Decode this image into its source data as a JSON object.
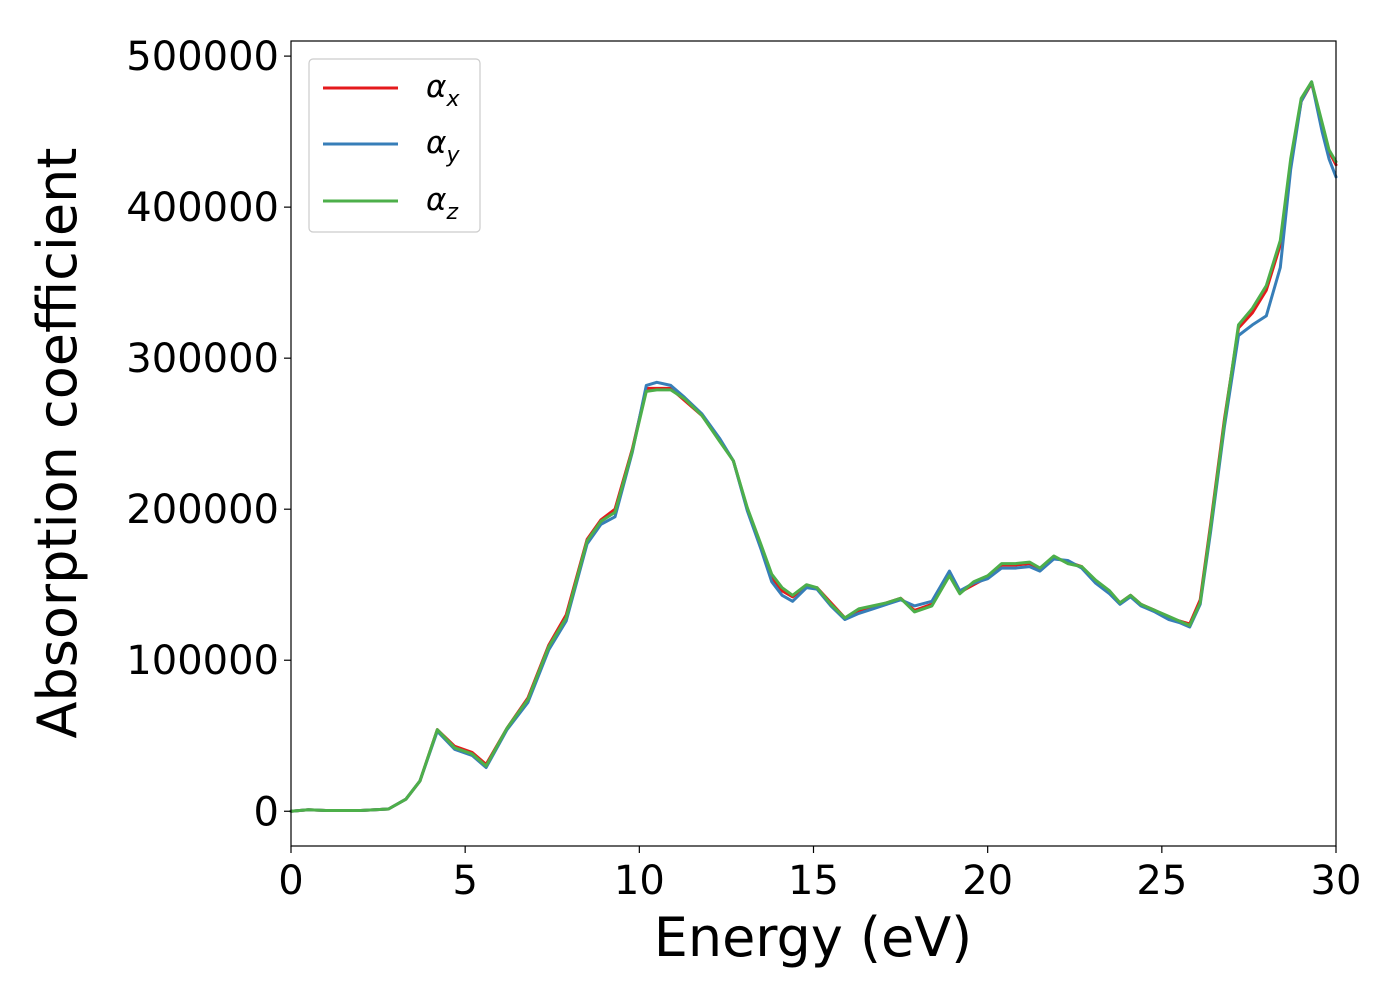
{
  "chart_data": {
    "type": "line",
    "title": "",
    "xlabel": "Energy (eV)",
    "ylabel": "Absorption coefficient",
    "xlim": [
      0,
      30
    ],
    "ylim": [
      -23000,
      510000
    ],
    "xticks": [
      "0",
      "5",
      "10",
      "15",
      "20",
      "25",
      "30"
    ],
    "xtick_values": [
      0,
      5,
      10,
      15,
      20,
      25,
      30
    ],
    "yticks": [
      "0",
      "100000",
      "200000",
      "300000",
      "400000",
      "500000"
    ],
    "ytick_values": [
      0,
      100000,
      200000,
      300000,
      400000,
      500000
    ],
    "grid": false,
    "legend_position": "top-left",
    "series": [
      {
        "name": "α_x",
        "label_base": "α",
        "label_sub": "x",
        "color": "#e41a1c",
        "x": [
          0,
          0.5,
          1,
          2,
          2.8,
          3.3,
          3.7,
          4.2,
          4.7,
          5.2,
          5.6,
          6.2,
          6.8,
          7.4,
          7.9,
          8.5,
          8.9,
          9.3,
          9.8,
          10.2,
          10.5,
          10.9,
          11.3,
          11.8,
          12.3,
          12.7,
          13.1,
          13.5,
          13.8,
          14.1,
          14.4,
          14.8,
          15.1,
          15.5,
          15.9,
          16.3,
          16.7,
          17.1,
          17.5,
          17.9,
          18.4,
          18.9,
          19.2,
          19.6,
          20,
          20.4,
          20.8,
          21.2,
          21.5,
          21.9,
          22.3,
          22.7,
          23.1,
          23.5,
          23.8,
          24.1,
          24.4,
          24.8,
          25.2,
          25.5,
          25.8,
          26.1,
          26.4,
          26.8,
          27.2,
          27.6,
          28,
          28.4,
          28.7,
          29,
          29.3,
          29.6,
          29.8,
          30
        ],
        "values": [
          0,
          1000,
          500,
          500,
          1500,
          8000,
          20000,
          54000,
          43000,
          39000,
          31000,
          55000,
          75000,
          110000,
          130000,
          180000,
          193000,
          200000,
          240000,
          280000,
          280000,
          280000,
          272000,
          262000,
          246000,
          232000,
          200000,
          175000,
          155000,
          146000,
          142000,
          149000,
          148000,
          138000,
          128000,
          133000,
          135000,
          138000,
          141000,
          133000,
          137000,
          158000,
          145000,
          150000,
          155000,
          163000,
          163000,
          164000,
          160000,
          168000,
          165000,
          162000,
          152000,
          145000,
          138000,
          143000,
          137000,
          133000,
          128000,
          126000,
          124000,
          140000,
          190000,
          260000,
          320000,
          330000,
          345000,
          375000,
          430000,
          470000,
          482000,
          455000,
          437000,
          428000
        ]
      },
      {
        "name": "α_y",
        "label_base": "α",
        "label_sub": "y",
        "color": "#377eb8",
        "x": [
          0,
          0.5,
          1,
          2,
          2.8,
          3.3,
          3.7,
          4.2,
          4.7,
          5.2,
          5.6,
          6.2,
          6.8,
          7.4,
          7.9,
          8.5,
          8.9,
          9.3,
          9.8,
          10.2,
          10.5,
          10.9,
          11.3,
          11.8,
          12.3,
          12.7,
          13.1,
          13.5,
          13.8,
          14.1,
          14.4,
          14.8,
          15.1,
          15.5,
          15.9,
          16.3,
          16.7,
          17.1,
          17.5,
          17.9,
          18.4,
          18.9,
          19.2,
          19.6,
          20,
          20.4,
          20.8,
          21.2,
          21.5,
          21.9,
          22.3,
          22.7,
          23.1,
          23.5,
          23.8,
          24.1,
          24.4,
          24.8,
          25.2,
          25.5,
          25.8,
          26.1,
          26.4,
          26.8,
          27.2,
          27.6,
          28,
          28.4,
          28.7,
          29,
          29.3,
          29.6,
          29.8,
          30
        ],
        "values": [
          0,
          1000,
          500,
          500,
          1500,
          8000,
          20000,
          53000,
          41000,
          37000,
          29000,
          54000,
          72000,
          107000,
          126000,
          177000,
          190000,
          195000,
          238000,
          282000,
          284000,
          282000,
          274000,
          263000,
          247000,
          232000,
          199000,
          173000,
          152000,
          143000,
          139000,
          148000,
          147000,
          136000,
          127000,
          131000,
          134000,
          137000,
          140000,
          136000,
          139000,
          159000,
          146000,
          151000,
          154000,
          161000,
          161000,
          162000,
          159000,
          167000,
          166000,
          161000,
          151000,
          144000,
          137000,
          142000,
          136000,
          132000,
          127000,
          125000,
          122000,
          137000,
          185000,
          255000,
          315000,
          322000,
          328000,
          360000,
          425000,
          470000,
          483000,
          450000,
          432000,
          420000
        ]
      },
      {
        "name": "α_z",
        "label_base": "α",
        "label_sub": "z",
        "color": "#4daf4a",
        "x": [
          0,
          0.5,
          1,
          2,
          2.8,
          3.3,
          3.7,
          4.2,
          4.7,
          5.2,
          5.6,
          6.2,
          6.8,
          7.4,
          7.9,
          8.5,
          8.9,
          9.3,
          9.8,
          10.2,
          10.5,
          10.9,
          11.3,
          11.8,
          12.3,
          12.7,
          13.1,
          13.5,
          13.8,
          14.1,
          14.4,
          14.8,
          15.1,
          15.5,
          15.9,
          16.3,
          16.7,
          17.1,
          17.5,
          17.9,
          18.4,
          18.9,
          19.2,
          19.6,
          20,
          20.4,
          20.8,
          21.2,
          21.5,
          21.9,
          22.3,
          22.7,
          23.1,
          23.5,
          23.8,
          24.1,
          24.4,
          24.8,
          25.2,
          25.5,
          25.8,
          26.1,
          26.4,
          26.8,
          27.2,
          27.6,
          28,
          28.4,
          28.7,
          29,
          29.3,
          29.6,
          29.8,
          30
        ],
        "values": [
          0,
          1000,
          500,
          500,
          1500,
          8000,
          20000,
          54000,
          42000,
          38000,
          30000,
          55000,
          74000,
          109000,
          128000,
          179000,
          192000,
          198000,
          239000,
          278000,
          279000,
          279000,
          273000,
          262000,
          245000,
          232000,
          201000,
          176000,
          157000,
          148000,
          143000,
          150000,
          148000,
          137000,
          128000,
          134000,
          136000,
          138000,
          141000,
          132000,
          136000,
          156000,
          144000,
          152000,
          156000,
          164000,
          164000,
          165000,
          161000,
          169000,
          164000,
          162000,
          153000,
          146000,
          138000,
          143000,
          137000,
          133000,
          129000,
          126000,
          123000,
          138000,
          188000,
          258000,
          322000,
          333000,
          348000,
          378000,
          432000,
          472000,
          483000,
          456000,
          438000,
          430000
        ]
      }
    ]
  }
}
